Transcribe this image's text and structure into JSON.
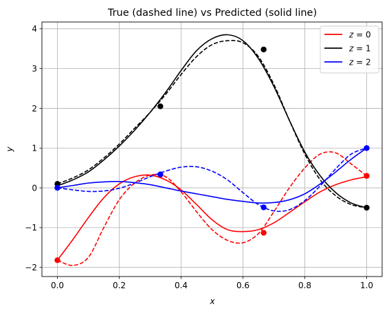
{
  "chart_data": {
    "type": "line",
    "title": "True (dashed line) vs Predicted (solid line)",
    "xlabel": "x",
    "ylabel": "y",
    "xlim": [
      -0.05,
      1.05
    ],
    "ylim": [
      -2.23,
      4.17
    ],
    "xticks": [
      0.0,
      0.2,
      0.4,
      0.6,
      0.8,
      1.0
    ],
    "xtick_labels": [
      "0.0",
      "0.2",
      "0.4",
      "0.6",
      "0.8",
      "1.0"
    ],
    "yticks": [
      -2,
      -1,
      0,
      1,
      2,
      3,
      4
    ],
    "ytick_labels": [
      "−2",
      "−1",
      "0",
      "1",
      "2",
      "3",
      "4"
    ],
    "grid": true,
    "legend_position": "top-right",
    "series": [
      {
        "name": "z = 0",
        "legend_var": "z",
        "legend_value": "0",
        "color": "#ff0000",
        "true_dashed": {
          "x": [
            0,
            0.05,
            0.1,
            0.15,
            0.2,
            0.25,
            0.3,
            0.35,
            0.4,
            0.45,
            0.5,
            0.55,
            0.6,
            0.65,
            0.7,
            0.75,
            0.8,
            0.85,
            0.9,
            0.95,
            1.0
          ],
          "y": [
            -1.82,
            -1.95,
            -1.75,
            -1.0,
            -0.3,
            0.12,
            0.32,
            0.28,
            -0.1,
            -0.6,
            -1.05,
            -1.32,
            -1.38,
            -1.15,
            -0.6,
            0.0,
            0.5,
            0.85,
            0.88,
            0.6,
            0.3
          ]
        },
        "predicted_solid": {
          "x": [
            0,
            0.05,
            0.1,
            0.15,
            0.2,
            0.25,
            0.3,
            0.35,
            0.4,
            0.45,
            0.5,
            0.55,
            0.6,
            0.65,
            0.7,
            0.75,
            0.8,
            0.85,
            0.9,
            0.95,
            1.0
          ],
          "y": [
            -1.82,
            -1.3,
            -0.75,
            -0.25,
            0.1,
            0.28,
            0.32,
            0.2,
            -0.05,
            -0.42,
            -0.8,
            -1.05,
            -1.1,
            -1.05,
            -0.88,
            -0.62,
            -0.35,
            -0.1,
            0.08,
            0.2,
            0.28
          ]
        },
        "markers": {
          "x": [
            0.0,
            0.333,
            0.667,
            1.0
          ],
          "y": [
            -1.82,
            0.33,
            -1.13,
            0.3
          ]
        }
      },
      {
        "name": "z = 1",
        "legend_var": "z",
        "legend_value": "1",
        "color": "#000000",
        "true_dashed": {
          "x": [
            0,
            0.05,
            0.1,
            0.15,
            0.2,
            0.25,
            0.3,
            0.35,
            0.4,
            0.45,
            0.5,
            0.55,
            0.6,
            0.65,
            0.7,
            0.75,
            0.8,
            0.85,
            0.9,
            0.95,
            1.0
          ],
          "y": [
            0.1,
            0.25,
            0.45,
            0.75,
            1.1,
            1.5,
            1.9,
            2.35,
            2.85,
            3.3,
            3.6,
            3.7,
            3.65,
            3.3,
            2.6,
            1.7,
            0.85,
            0.2,
            -0.2,
            -0.42,
            -0.5
          ]
        },
        "predicted_solid": {
          "x": [
            0,
            0.05,
            0.1,
            0.15,
            0.2,
            0.25,
            0.3,
            0.35,
            0.4,
            0.45,
            0.5,
            0.55,
            0.6,
            0.65,
            0.7,
            0.75,
            0.8,
            0.85,
            0.9,
            0.95,
            1.0
          ],
          "y": [
            0.05,
            0.2,
            0.4,
            0.7,
            1.05,
            1.45,
            1.9,
            2.4,
            2.95,
            3.45,
            3.75,
            3.85,
            3.7,
            3.25,
            2.55,
            1.7,
            0.9,
            0.3,
            -0.12,
            -0.38,
            -0.5
          ]
        },
        "markers": {
          "x": [
            0.0,
            0.333,
            0.667,
            1.0
          ],
          "y": [
            0.1,
            2.05,
            3.48,
            -0.5
          ]
        }
      },
      {
        "name": "z = 2",
        "legend_var": "z",
        "legend_value": "2",
        "color": "#0000ff",
        "true_dashed": {
          "x": [
            0,
            0.05,
            0.1,
            0.15,
            0.2,
            0.25,
            0.3,
            0.35,
            0.4,
            0.45,
            0.5,
            0.55,
            0.6,
            0.65,
            0.7,
            0.75,
            0.8,
            0.85,
            0.9,
            0.95,
            1.0
          ],
          "y": [
            0.0,
            -0.05,
            -0.09,
            -0.08,
            -0.01,
            0.12,
            0.28,
            0.42,
            0.52,
            0.53,
            0.42,
            0.2,
            -0.12,
            -0.42,
            -0.58,
            -0.55,
            -0.32,
            0.05,
            0.48,
            0.85,
            1.0
          ]
        },
        "predicted_solid": {
          "x": [
            0,
            0.05,
            0.1,
            0.15,
            0.2,
            0.25,
            0.3,
            0.35,
            0.4,
            0.45,
            0.5,
            0.55,
            0.6,
            0.65,
            0.7,
            0.75,
            0.8,
            0.85,
            0.9,
            0.95,
            1.0
          ],
          "y": [
            0.0,
            0.06,
            0.12,
            0.15,
            0.16,
            0.13,
            0.08,
            0.0,
            -0.08,
            -0.15,
            -0.22,
            -0.29,
            -0.34,
            -0.38,
            -0.37,
            -0.3,
            -0.15,
            0.1,
            0.4,
            0.72,
            1.0
          ]
        },
        "markers": {
          "x": [
            0.0,
            0.333,
            0.667,
            1.0
          ],
          "y": [
            0.0,
            0.34,
            -0.49,
            1.0
          ]
        }
      }
    ]
  }
}
